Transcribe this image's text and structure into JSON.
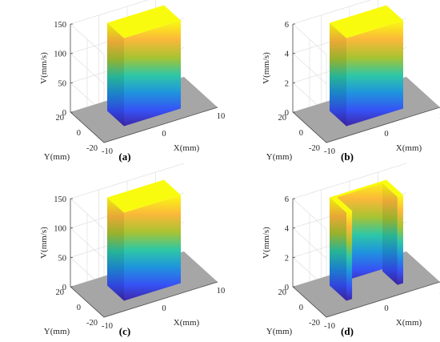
{
  "chart_data": [
    {
      "id": "a",
      "type": "surface3d",
      "caption": "(a)",
      "xlabel": "X(mm)",
      "ylabel": "Y(mm)",
      "zlabel": "V(mm/s)",
      "xlim": [
        -10,
        10
      ],
      "ylim": [
        -20,
        20
      ],
      "zlim": [
        0,
        150
      ],
      "xticks": [
        "-10",
        "0",
        "10"
      ],
      "yticks": [
        "-20",
        "0",
        "20"
      ],
      "zticks": [
        "0",
        "50",
        "100",
        "150"
      ],
      "base_region": {
        "x": [
          -20,
          20
        ],
        "y": [
          -20,
          20
        ]
      },
      "block": {
        "x": [
          -10,
          10
        ],
        "y": [
          -10,
          10
        ],
        "z": [
          0,
          150
        ]
      },
      "shape": "box"
    },
    {
      "id": "b",
      "type": "surface3d",
      "caption": "(b)",
      "xlabel": "X(mm)",
      "ylabel": "Y(mm)",
      "zlabel": "V(mm/s)",
      "xlim": [
        -10,
        10
      ],
      "ylim": [
        -20,
        20
      ],
      "zlim": [
        0,
        6
      ],
      "xticks": [
        "-10",
        "0",
        "10"
      ],
      "yticks": [
        "-20",
        "0",
        "20"
      ],
      "zticks": [
        "0",
        "2",
        "4",
        "6"
      ],
      "base_region": {
        "x": [
          -20,
          20
        ],
        "y": [
          -20,
          20
        ]
      },
      "block": {
        "x": [
          -10,
          10
        ],
        "y": [
          -10,
          10
        ],
        "z": [
          0,
          6
        ]
      },
      "shape": "box"
    },
    {
      "id": "c",
      "type": "surface3d",
      "caption": "(c)",
      "xlabel": "X(mm)",
      "ylabel": "Y(mm)",
      "zlabel": "V(mm/s)",
      "xlim": [
        -10,
        10
      ],
      "ylim": [
        -20,
        20
      ],
      "zlim": [
        0,
        150
      ],
      "xticks": [
        "-10",
        "0",
        "10"
      ],
      "yticks": [
        "-20",
        "0",
        "20"
      ],
      "zticks": [
        "0",
        "50",
        "100",
        "150"
      ],
      "base_region": {
        "x": [
          -20,
          20
        ],
        "y": [
          -20,
          20
        ]
      },
      "block": {
        "x": [
          -10,
          10
        ],
        "y": [
          -10,
          10
        ],
        "z": [
          0,
          150
        ]
      },
      "shape": "box"
    },
    {
      "id": "d",
      "type": "surface3d",
      "caption": "(d)",
      "xlabel": "X(mm)",
      "ylabel": "Y(mm)",
      "zlabel": "V(mm/s)",
      "xlim": [
        -10,
        10
      ],
      "ylim": [
        -20,
        20
      ],
      "zlim": [
        0,
        6
      ],
      "xticks": [
        "-10",
        "0",
        "10"
      ],
      "yticks": [
        "-20",
        "0",
        "20"
      ],
      "zticks": [
        "0",
        "2",
        "4",
        "6"
      ],
      "base_region": {
        "x": [
          -20,
          20
        ],
        "y": [
          -20,
          20
        ]
      },
      "block": {
        "x": [
          -10,
          10
        ],
        "y": [
          -10,
          10
        ],
        "z": [
          0,
          6
        ]
      },
      "shape": "u-channel"
    }
  ],
  "colors": {
    "base": "#a6a6a6",
    "top": "#f9fb0e",
    "gradient_top_to_bottom": [
      "#f9fb0e",
      "#fbb83a",
      "#a9c331",
      "#2ec7a6",
      "#1f95dd",
      "#3652f5",
      "#3e26a8"
    ]
  }
}
